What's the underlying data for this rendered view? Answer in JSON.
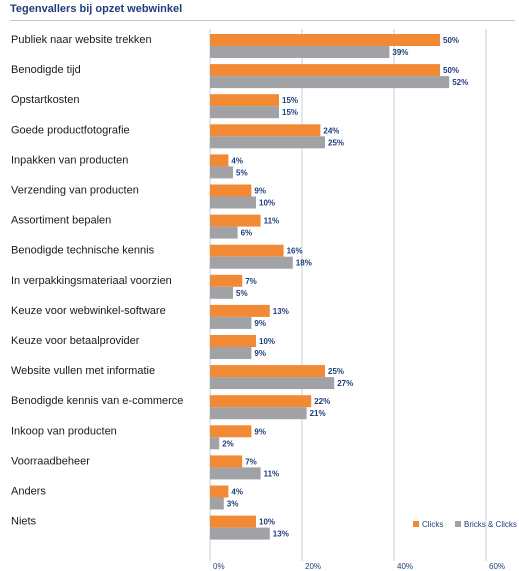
{
  "title": "Tegenvallers bij opzet webwinkel",
  "colors": {
    "clicks": "#f28a35",
    "bricks": "#a1a2a6",
    "grid": "#c8ccd2",
    "text": "#1f3e7a"
  },
  "chart_data": {
    "type": "bar",
    "orientation": "horizontal",
    "title": "Tegenvallers bij opzet webwinkel",
    "categories": [
      "Publiek naar website trekken",
      "Benodigde tijd",
      "Opstartkosten",
      "Goede productfotografie",
      "Inpakken van producten",
      "Verzending van producten",
      "Assortiment bepalen",
      "Benodigde technische kennis",
      "In verpakkingsmateriaal voorzien",
      "Keuze voor webwinkel-software",
      "Keuze voor betaalprovider",
      "Website vullen met informatie",
      "Benodigde kennis van e-commerce",
      "Inkoop van producten",
      "Voorraadbeheer",
      "Anders",
      "Niets"
    ],
    "series": [
      {
        "name": "Clicks",
        "color": "#f28a35",
        "values": [
          50,
          50,
          15,
          24,
          4,
          9,
          11,
          16,
          7,
          13,
          10,
          25,
          22,
          9,
          7,
          4,
          10
        ]
      },
      {
        "name": "Bricks & Clicks",
        "color": "#a1a2a6",
        "values": [
          39,
          52,
          15,
          25,
          5,
          10,
          6,
          18,
          5,
          9,
          9,
          27,
          21,
          2,
          11,
          3,
          13
        ]
      }
    ],
    "xlim": [
      0,
      60
    ],
    "xticks": [
      0,
      20,
      40,
      60
    ],
    "xtick_labels": [
      "0%",
      "20%",
      "40%",
      "60%"
    ],
    "value_suffix": "%",
    "legend_position": "bottom-right",
    "grid": true
  }
}
